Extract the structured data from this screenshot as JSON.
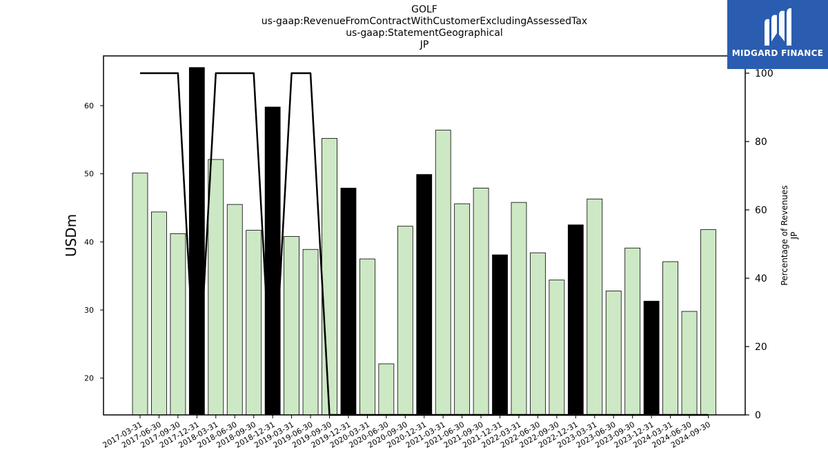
{
  "chart_data": {
    "type": "bar+line",
    "title_lines": [
      "GOLF",
      "us-gaap:RevenueFromContractWithCustomerExcludingAssessedTax",
      "us-gaap:StatementGeographical",
      "JP"
    ],
    "ylabel_left": "USDm",
    "ylabel_right_lines": [
      "Percentage of Revenues",
      "JP"
    ],
    "categories": [
      "2017-03-31",
      "2017-06-30",
      "2017-09-30",
      "2017-12-31",
      "2018-03-31",
      "2018-06-30",
      "2018-09-30",
      "2018-12-31",
      "2019-03-31",
      "2019-06-30",
      "2019-09-30",
      "2019-12-31",
      "2020-03-31",
      "2020-06-30",
      "2020-09-30",
      "2020-12-31",
      "2021-03-31",
      "2021-06-30",
      "2021-09-30",
      "2021-12-31",
      "2022-03-31",
      "2022-06-30",
      "2022-09-30",
      "2022-12-31",
      "2023-03-31",
      "2023-06-30",
      "2023-09-30",
      "2023-12-31",
      "2024-03-31",
      "2024-06-30",
      "2024-09-30"
    ],
    "bar_values": [
      50.1,
      44.4,
      41.2,
      65.6,
      52.1,
      45.5,
      41.7,
      59.8,
      40.8,
      38.9,
      55.2,
      47.9,
      37.5,
      22.1,
      42.3,
      49.9,
      56.4,
      45.6,
      47.9,
      38.1,
      45.8,
      38.4,
      34.4,
      42.5,
      46.3,
      32.8,
      39.1,
      31.3,
      37.1,
      29.8,
      41.8
    ],
    "bar_highlight": [
      false,
      false,
      false,
      true,
      false,
      false,
      false,
      true,
      false,
      false,
      false,
      true,
      false,
      false,
      false,
      true,
      false,
      false,
      false,
      true,
      false,
      false,
      false,
      true,
      false,
      false,
      false,
      true,
      false,
      false,
      false
    ],
    "line_values": [
      100,
      100,
      100,
      0,
      100,
      100,
      100,
      0,
      100,
      100,
      0,
      0,
      0,
      0,
      0,
      0,
      0,
      0,
      0,
      0,
      0,
      0,
      0,
      0,
      0,
      0,
      0,
      0,
      0,
      0,
      0
    ],
    "ylim_left": [
      14.6,
      67.3
    ],
    "yticks_left": [
      20,
      30,
      40,
      50,
      60
    ],
    "ylim_right": [
      0,
      100
    ],
    "yticks_right": [
      0,
      20,
      40,
      60,
      80,
      100
    ],
    "colors": {
      "bar": "#cce8c4",
      "bar_highlight": "#000000",
      "bar_edge": "#000000",
      "line": "#000000"
    }
  },
  "logo": {
    "text": "MIDGARD FINANCE",
    "background": "#2a5db0"
  }
}
